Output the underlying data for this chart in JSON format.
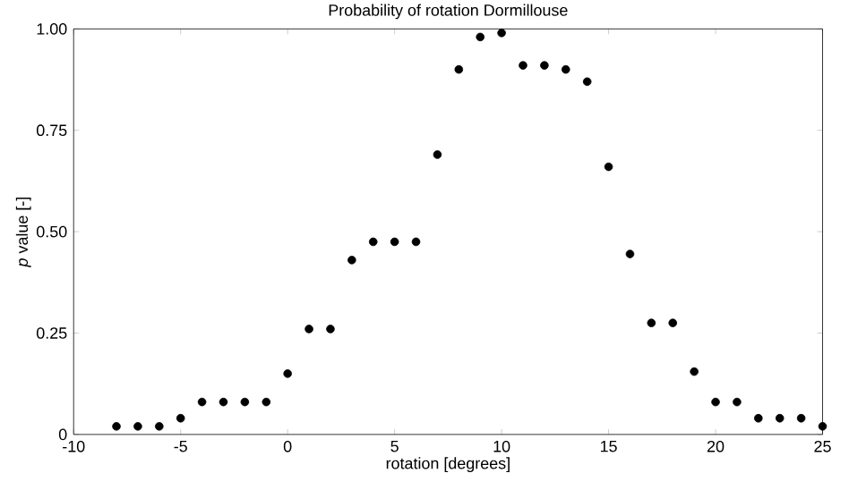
{
  "chart_data": {
    "type": "scatter",
    "title": "Probability of rotation Dormillouse",
    "xlabel": "rotation [degrees]",
    "ylabel": "*p* value [-]",
    "x": [
      -8,
      -7,
      -6,
      -5,
      -4,
      -3,
      -2,
      -1,
      0,
      1,
      2,
      3,
      4,
      5,
      6,
      7,
      8,
      9,
      10,
      11,
      12,
      13,
      14,
      15,
      16,
      17,
      18,
      19,
      20,
      21,
      22,
      23,
      24,
      25
    ],
    "series": [
      {
        "color": "#000000",
        "values": [
          0.02,
          0.02,
          0.02,
          0.04,
          0.08,
          0.08,
          0.08,
          0.08,
          0.15,
          0.26,
          0.26,
          0.43,
          0.475,
          0.475,
          0.475,
          0.69,
          0.9,
          0.98,
          0.99,
          0.91,
          0.91,
          0.9,
          0.87,
          0.66,
          0.445,
          0.275,
          0.275,
          0.155,
          0.08,
          0.08,
          0.04,
          0.04,
          0.04,
          0.02
        ]
      }
    ],
    "xlim": [
      -10,
      25
    ],
    "ylim": [
      0,
      1
    ],
    "xticks": [
      -10,
      -5,
      0,
      5,
      10,
      15,
      20,
      25
    ],
    "yticks": [
      {
        "value": 0,
        "label": "0"
      },
      {
        "value": 0.25,
        "label": "0.25"
      },
      {
        "value": 0.5,
        "label": "0.50"
      },
      {
        "value": 0.75,
        "label": "0.75"
      },
      {
        "value": 1,
        "label": "1.00"
      }
    ],
    "marker": "circle",
    "grid": false
  }
}
